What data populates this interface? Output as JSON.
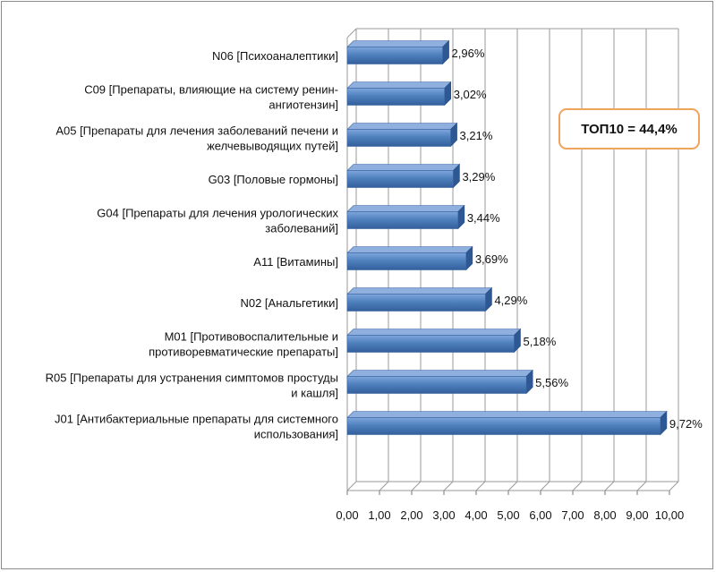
{
  "badge": {
    "text": "ТОП10 = 44,4%",
    "border_color": "#f0a35a"
  },
  "chart_data": {
    "type": "bar",
    "orientation": "horizontal",
    "title": "",
    "xlabel": "",
    "ylabel": "",
    "xlim": [
      0,
      10
    ],
    "grid": true,
    "legend": "none",
    "bar_color": "#4f81bd",
    "categories": [
      [
        "N06 [Психоаналептики]"
      ],
      [
        "C09 [Препараты, влияющие на систему ренин-",
        "ангиотензин]"
      ],
      [
        "A05 [Препараты для лечения заболеваний печени и",
        "желчевыводящих путей]"
      ],
      [
        "G03 [Половые гормоны]"
      ],
      [
        "G04 [Препараты для лечения урологических",
        "заболеваний]"
      ],
      [
        "A11 [Витамины]"
      ],
      [
        "N02 [Анальгетики]"
      ],
      [
        "M01 [Противовоспалительные и",
        "противоревматические препараты]"
      ],
      [
        "R05 [Препараты для устранения симптомов простуды",
        "и кашля]"
      ],
      [
        "J01 [Антибактериальные препараты для системного",
        "использования]"
      ]
    ],
    "values": [
      2.96,
      3.02,
      3.21,
      3.29,
      3.44,
      3.69,
      4.29,
      5.18,
      5.56,
      9.72
    ],
    "value_labels": [
      "2,96%",
      "3,02%",
      "3,21%",
      "3,29%",
      "3,44%",
      "3,69%",
      "4,29%",
      "5,18%",
      "5,56%",
      "9,72%"
    ],
    "ticks": [
      0,
      1,
      2,
      3,
      4,
      5,
      6,
      7,
      8,
      9,
      10
    ],
    "tick_labels": [
      "0,00",
      "1,00",
      "2,00",
      "3,00",
      "4,00",
      "5,00",
      "6,00",
      "7,00",
      "8,00",
      "9,00",
      "10,00"
    ]
  }
}
